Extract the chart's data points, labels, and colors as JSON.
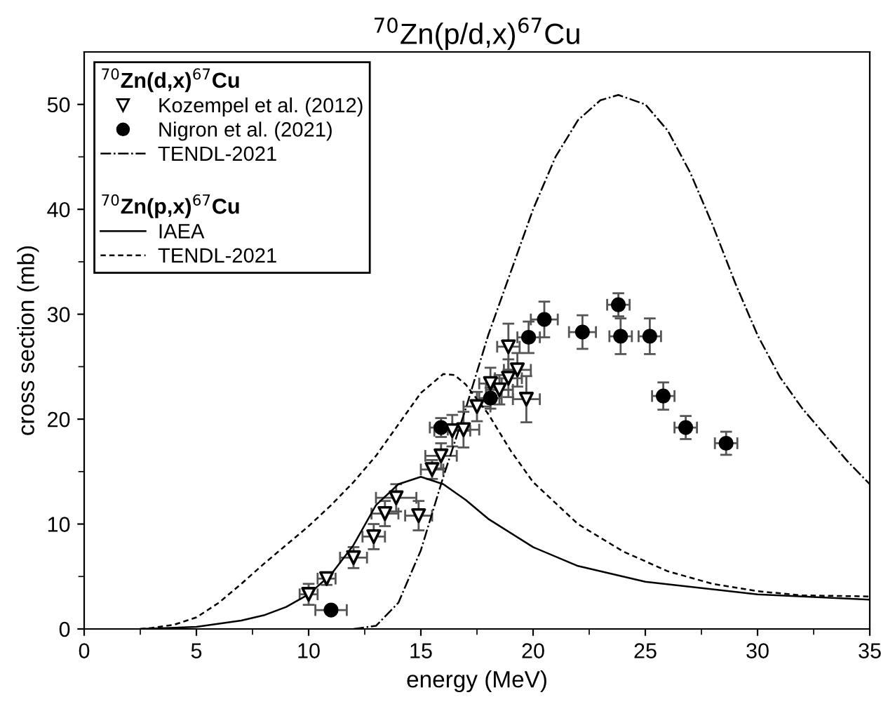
{
  "chart_data": {
    "type": "scatter",
    "title": "$^{70}$Zn(p/d,x)$^{67}$Cu",
    "xlabel": "energy (MeV)",
    "ylabel": "cross section (mb)",
    "legend_title": "$^{70}$Zn(d,x)$^{67}$Cu",
    "annotations": [
      "$^{70}$Zn(p,x)$^{67}$Cu"
    ],
    "xlim": [
      0,
      35
    ],
    "ylim": [
      0,
      55
    ],
    "xticks": [
      0,
      5,
      10,
      15,
      20,
      25,
      30,
      35
    ],
    "yticks": [
      0,
      10,
      20,
      30,
      40,
      50
    ],
    "grid": false,
    "legend": "top left",
    "series": [
      {
        "name": "Kozempel et al. (2012)",
        "marker": "triangle",
        "color": "#000000",
        "x": [
          10.0,
          10.8,
          12.0,
          12.9,
          13.4,
          13.9,
          14.9,
          15.5,
          15.9,
          16.4,
          16.9,
          17.5,
          18.1,
          18.5,
          18.9,
          18.9,
          19.3,
          19.7
        ],
        "values": [
          3.3,
          4.8,
          6.8,
          8.8,
          11.0,
          12.5,
          10.8,
          15.2,
          16.5,
          18.9,
          19.0,
          21.2,
          23.4,
          22.8,
          23.9,
          26.9,
          24.7,
          21.9
        ],
        "errors": [
          1.0,
          0.6,
          1.0,
          1.2,
          1.2,
          1.3,
          1.4,
          0.9,
          1.2,
          1.5,
          1.7,
          1.4,
          1.5,
          1.4,
          1.8,
          2.2,
          1.6,
          2.2
        ],
        "xerrors": [
          0.4,
          0.4,
          0.6,
          0.5,
          0.6,
          0.9,
          0.6,
          0.5,
          0.7,
          0.8,
          0.7,
          0.6,
          0.5,
          0.6,
          0.6,
          0.5,
          0.6,
          0.6
        ]
      },
      {
        "name": "Nigron et al. (2021)",
        "marker": "circle",
        "color": "#000000",
        "x": [
          11.0,
          15.9,
          18.1,
          19.8,
          20.5,
          22.2,
          23.8,
          23.9,
          25.2,
          25.8,
          26.8,
          28.6
        ],
        "values": [
          1.8,
          19.2,
          22.0,
          27.8,
          29.5,
          28.3,
          30.9,
          27.9,
          27.9,
          22.2,
          19.2,
          17.7
        ],
        "errors": [
          null,
          0.9,
          1.0,
          1.5,
          1.7,
          1.6,
          1.1,
          1.7,
          1.7,
          1.3,
          1.1,
          1.1
        ],
        "xerrors": [
          0.7,
          0.5,
          0.5,
          0.5,
          0.6,
          0.6,
          0.5,
          0.5,
          0.5,
          0.5,
          0.5,
          0.5
        ]
      },
      {
        "name": "TENDL-2021",
        "type": "line",
        "line_style": "dashdot",
        "color": "#000000",
        "x": [
          12,
          13,
          14,
          15,
          16,
          17,
          18,
          19,
          20,
          21,
          22,
          23,
          23.8,
          25,
          26,
          27,
          28,
          29,
          30,
          31,
          32,
          33,
          34,
          35
        ],
        "values": [
          0,
          0.3,
          2.5,
          7.5,
          14.5,
          21,
          28,
          34,
          40,
          45,
          48.5,
          50.4,
          50.9,
          50,
          47.5,
          43.5,
          38.5,
          33,
          28,
          24,
          21,
          18.5,
          16,
          13.8
        ]
      },
      {
        "name": "IAEA",
        "type": "line",
        "line_style": "solid",
        "color": "#000000",
        "x": [
          2.5,
          5,
          7,
          8,
          9,
          10,
          11,
          12,
          13,
          14,
          15,
          16,
          17,
          18,
          20,
          22,
          25,
          30,
          35
        ],
        "values": [
          0,
          0.2,
          0.8,
          1.3,
          2.1,
          3.3,
          5.2,
          8,
          11.8,
          13.8,
          14.5,
          13.8,
          12.3,
          10.5,
          7.8,
          6,
          4.5,
          3.3,
          2.8
        ]
      },
      {
        "name": "TENDL-2021",
        "type": "line",
        "line_style": "dashed",
        "color": "#000000",
        "x": [
          2.5,
          3,
          4,
          5,
          6,
          7,
          8,
          9,
          10,
          11,
          12,
          13,
          14,
          15,
          16,
          16.5,
          17,
          18,
          19,
          20,
          22,
          24,
          26,
          28,
          30,
          32,
          35
        ],
        "values": [
          0,
          0.1,
          0.4,
          1.1,
          2.5,
          4.3,
          6.2,
          8.0,
          9.8,
          11.8,
          14.0,
          16.5,
          19.5,
          22.5,
          24.3,
          24.2,
          23.3,
          20.5,
          17.0,
          14.0,
          10.0,
          7.4,
          5.5,
          4.3,
          3.6,
          3.2,
          3.1
        ]
      }
    ]
  }
}
